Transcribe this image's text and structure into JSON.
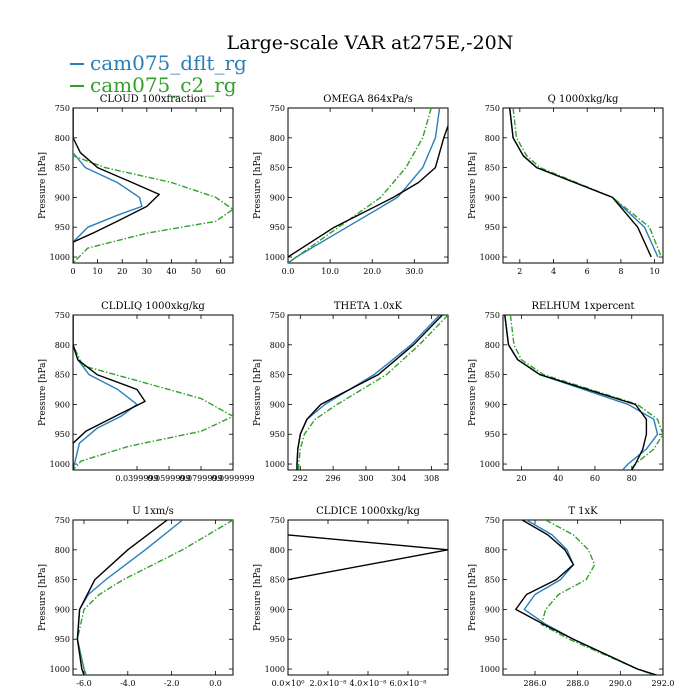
{
  "title": "Large-scale VAR at275E,-20N",
  "chart_data": {
    "type": "line",
    "ylabel": "Pressure [hPa]",
    "legend_placement": "top-left",
    "series_info": [
      {
        "name": "cam075_dflt_rg",
        "color": "#2a7fba",
        "dash": "solid"
      },
      {
        "name": "cam075_c2_rg",
        "color": "#33a02c",
        "dash": "dashdot"
      },
      {
        "name": "",
        "color": "#000000",
        "dash": "solid"
      }
    ],
    "panels": [
      {
        "title": "CLOUD 100xfraction",
        "xlim": [
          0,
          65
        ],
        "ylim": [
          1010,
          750
        ],
        "xticks": [
          0,
          10,
          20,
          30,
          40,
          50,
          60
        ],
        "xticklabels": [
          "0",
          "10",
          "20",
          "30",
          "40",
          "50",
          "60"
        ],
        "yticks": [
          750,
          800,
          850,
          900,
          950,
          1000
        ],
        "yticklabels": [
          "750",
          "800",
          "850",
          "900",
          "950",
          "1000"
        ],
        "series": [
          {
            "y": [
              750,
              800,
              825,
              850,
              875,
              900,
              915,
              930,
              950,
              975,
              1010
            ],
            "x": [
              0,
              0,
              0,
              5,
              18,
              27,
              28,
              18,
              6,
              0,
              0
            ]
          },
          {
            "y": [
              750,
              800,
              830,
              850,
              875,
              900,
              920,
              940,
              960,
              985,
              1010
            ],
            "x": [
              0,
              0,
              0,
              13,
              40,
              58,
              65,
              58,
              30,
              6,
              0
            ]
          },
          {
            "y": [
              750,
              800,
              825,
              850,
              875,
              895,
              915,
              940,
              960,
              975,
              1010
            ],
            "x": [
              0,
              0,
              3,
              10,
              24,
              35,
              30,
              18,
              8,
              0,
              0
            ]
          }
        ]
      },
      {
        "title": "OMEGA 864xPa/s",
        "xlim": [
          0,
          38
        ],
        "ylim": [
          1010,
          750
        ],
        "xticks": [
          0,
          10,
          20,
          30
        ],
        "xticklabels": [
          "0.0",
          "10.0",
          "20.0",
          "30.0"
        ],
        "yticks": [
          750,
          800,
          850,
          900,
          950,
          1000
        ],
        "yticklabels": [
          "750",
          "800",
          "850",
          "900",
          "950",
          "1000"
        ],
        "series": [
          {
            "y": [
              750,
              800,
              850,
              900,
              950,
              1000,
              1010
            ],
            "x": [
              36,
              35,
              32,
              26,
              14,
              2,
              0
            ]
          },
          {
            "y": [
              750,
              800,
              850,
              900,
              950,
              1000,
              1010
            ],
            "x": [
              34,
              32,
              28,
              22,
              12,
              2,
              0
            ]
          },
          {
            "y": [
              780,
              800,
              850,
              875,
              900,
              950,
              1000
            ],
            "x": [
              38,
              37,
              35,
              31,
              25,
              11,
              0
            ]
          }
        ]
      },
      {
        "title": "Q 1000xkg/kg",
        "xlim": [
          1,
          10.5
        ],
        "ylim": [
          1010,
          750
        ],
        "xticks": [
          2,
          4,
          6,
          8,
          10
        ],
        "xticklabels": [
          "2",
          "4",
          "6",
          "8",
          "10"
        ],
        "yticks": [
          750,
          800,
          850,
          900,
          950,
          1000
        ],
        "yticklabels": [
          "750",
          "800",
          "850",
          "900",
          "950",
          "1000"
        ],
        "series": [
          {
            "y": [
              750,
              800,
              830,
              850,
              900,
              950,
              1000
            ],
            "x": [
              1.4,
              1.6,
              2.2,
              3.0,
              7.5,
              9.4,
              10.2
            ]
          },
          {
            "y": [
              750,
              800,
              830,
              850,
              900,
              950,
              1000
            ],
            "x": [
              1.6,
              1.8,
              2.4,
              3.2,
              7.5,
              9.7,
              10.4
            ]
          },
          {
            "y": [
              750,
              800,
              830,
              850,
              900,
              950,
              1000
            ],
            "x": [
              1.4,
              1.6,
              2.2,
              3.0,
              7.5,
              9.0,
              9.8
            ]
          }
        ]
      },
      {
        "title": "CLDLIQ 1000xkg/kg",
        "xlim": [
          0,
          0.1
        ],
        "ylim": [
          1010,
          750
        ],
        "xticks": [
          0.04,
          0.06,
          0.08,
          0.1
        ],
        "xticklabels": [
          "0.0399999",
          "0.0599999",
          "0.0799999",
          "0.0999999"
        ],
        "yticks": [
          750,
          800,
          850,
          900,
          950,
          1000
        ],
        "yticklabels": [
          "750",
          "800",
          "850",
          "900",
          "950",
          "1000"
        ],
        "series": [
          {
            "y": [
              750,
              800,
              825,
              850,
              875,
              900,
              920,
              940,
              965,
              1010
            ],
            "x": [
              0,
              0,
              0.003,
              0.01,
              0.028,
              0.04,
              0.03,
              0.015,
              0.004,
              0
            ]
          },
          {
            "y": [
              750,
              800,
              835,
              860,
              890,
              920,
              945,
              970,
              995,
              1010
            ],
            "x": [
              0,
              0,
              0.006,
              0.04,
              0.08,
              0.1,
              0.08,
              0.035,
              0.005,
              0
            ]
          },
          {
            "y": [
              750,
              800,
              825,
              850,
              875,
              895,
              915,
              945,
              965,
              1010
            ],
            "x": [
              0,
              0,
              0.003,
              0.015,
              0.04,
              0.045,
              0.03,
              0.008,
              0,
              0
            ]
          }
        ]
      },
      {
        "title": "THETA 1.0xK",
        "xlim": [
          290.5,
          310
        ],
        "ylim": [
          1010,
          750
        ],
        "xticks": [
          292,
          296,
          300,
          304,
          308
        ],
        "xticklabels": [
          "292",
          "296",
          "300",
          "304",
          "308"
        ],
        "yticks": [
          750,
          800,
          850,
          900,
          950,
          1000
        ],
        "yticklabels": [
          "750",
          "800",
          "850",
          "900",
          "950",
          "1000"
        ],
        "series": [
          {
            "y": [
              750,
              800,
              850,
              900,
              925,
              950,
              975,
              1000,
              1010
            ],
            "x": [
              309,
              305.5,
              301,
              295,
              292.8,
              292,
              291.7,
              291.6,
              291.6
            ]
          },
          {
            "y": [
              750,
              800,
              850,
              900,
              925,
              950,
              975,
              1000,
              1010
            ],
            "x": [
              310,
              306.5,
              302.5,
              296.5,
              293.8,
              292.5,
              292,
              291.8,
              291.8
            ]
          },
          {
            "y": [
              750,
              800,
              850,
              900,
              925,
              950,
              975,
              1000,
              1010
            ],
            "x": [
              309.3,
              305.8,
              301.5,
              294.5,
              292.8,
              292,
              291.7,
              291.6,
              291.6
            ]
          }
        ]
      },
      {
        "title": "RELHUM 1xpercent",
        "xlim": [
          10,
          97
        ],
        "ylim": [
          1010,
          750
        ],
        "xticks": [
          20,
          40,
          60,
          80
        ],
        "xticklabels": [
          "20",
          "40",
          "60",
          "80"
        ],
        "yticks": [
          750,
          800,
          850,
          900,
          950,
          1000
        ],
        "yticklabels": [
          "750",
          "800",
          "850",
          "900",
          "950",
          "1000"
        ],
        "series": [
          {
            "y": [
              750,
              800,
              825,
              850,
              900,
              925,
              950,
              975,
              1000,
              1010
            ],
            "x": [
              11,
              13,
              18,
              30,
              78,
              92,
              94,
              88,
              78,
              75
            ]
          },
          {
            "y": [
              750,
              800,
              825,
              850,
              900,
              925,
              950,
              975,
              1000,
              1010
            ],
            "x": [
              14,
              16,
              20,
              32,
              83,
              94,
              97,
              92,
              82,
              79
            ]
          },
          {
            "y": [
              750,
              800,
              825,
              850,
              900,
              925,
              950,
              975,
              1000,
              1010
            ],
            "x": [
              11,
              13,
              18,
              30,
              82,
              88,
              88,
              86,
              82,
              80
            ]
          }
        ]
      },
      {
        "title": "U 1xm/s",
        "xlim": [
          -6.5,
          0.8
        ],
        "ylim": [
          1010,
          750
        ],
        "xticks": [
          -6,
          -4,
          -2,
          0
        ],
        "xticklabels": [
          "-6.0",
          "-4.0",
          "-2.0",
          "0.0"
        ],
        "yticks": [
          750,
          800,
          850,
          900,
          950,
          1000
        ],
        "yticklabels": [
          "750",
          "800",
          "850",
          "900",
          "950",
          "1000"
        ],
        "series": [
          {
            "y": [
              750,
              800,
              850,
              875,
              900,
              950,
              1000,
              1010
            ],
            "x": [
              -1.5,
              -3.2,
              -5,
              -5.8,
              -6.2,
              -6.3,
              -6.0,
              -5.9
            ]
          },
          {
            "y": [
              750,
              800,
              850,
              875,
              900,
              950,
              1000,
              1010
            ],
            "x": [
              0.8,
              -1.5,
              -4.2,
              -5.3,
              -6.0,
              -6.3,
              -6.0,
              -5.9
            ]
          },
          {
            "y": [
              750,
              800,
              850,
              900,
              950,
              1000,
              1010
            ],
            "x": [
              -2.2,
              -4,
              -5.5,
              -6.2,
              -6.3,
              -6.1,
              -6.0
            ]
          }
        ]
      },
      {
        "title": "CLDICE 1000xkg/kg",
        "xlim": [
          0,
          8e-08
        ],
        "ylim": [
          1010,
          750
        ],
        "xticks": [
          0,
          2e-08,
          4e-08,
          6e-08
        ],
        "xticklabels": [
          "0.0×10⁰",
          "2.0×10⁻⁸",
          "4.0×10⁻⁸",
          "6.0×10⁻⁸"
        ],
        "yticks": [
          750,
          800,
          850,
          900,
          950,
          1000
        ],
        "yticklabels": [
          "750",
          "800",
          "850",
          "900",
          "950",
          "1000"
        ],
        "series": [
          {
            "y": [
              775,
              800,
              850
            ],
            "x": [
              0,
              8e-08,
              0
            ]
          }
        ]
      },
      {
        "title": "T 1xK",
        "xlim": [
          284.5,
          292
        ],
        "ylim": [
          1010,
          750
        ],
        "xticks": [
          286,
          288,
          290,
          292
        ],
        "xticklabels": [
          "286.0",
          "288.0",
          "290.0",
          "292.0"
        ],
        "yticks": [
          750,
          800,
          850,
          900,
          950,
          1000
        ],
        "yticklabels": [
          "750",
          "800",
          "850",
          "900",
          "950",
          "1000"
        ],
        "series": [
          {
            "y": [
              750,
              775,
              800,
              825,
              850,
              875,
              900,
              925,
              950,
              975,
              1000,
              1010
            ],
            "x": [
              285.6,
              286.8,
              287.5,
              287.8,
              287.2,
              286.0,
              285.5,
              286.5,
              287.8,
              289.3,
              290.8,
              291.6
            ]
          },
          {
            "y": [
              750,
              775,
              800,
              825,
              850,
              875,
              900,
              925,
              950,
              975,
              1000,
              1010
            ],
            "x": [
              286.5,
              287.8,
              288.5,
              288.8,
              288.4,
              287.1,
              286.5,
              286.3,
              287.6,
              289.2,
              290.8,
              291.6
            ]
          },
          {
            "y": [
              750,
              775,
              800,
              825,
              850,
              875,
              900,
              925,
              950,
              975,
              1000,
              1010
            ],
            "x": [
              285.4,
              286.6,
              287.4,
              287.8,
              287.0,
              285.6,
              285.1,
              286.4,
              287.8,
              289.3,
              290.8,
              291.7
            ]
          }
        ]
      }
    ]
  }
}
